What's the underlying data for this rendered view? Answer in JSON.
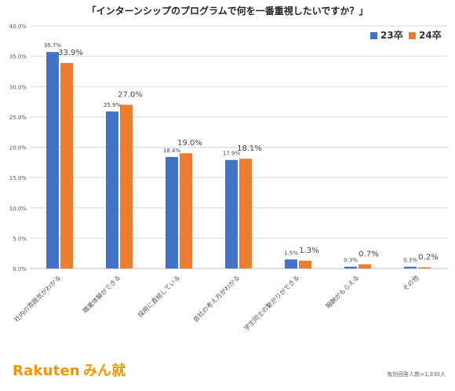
{
  "colors": {
    "series_23": "#4472C4",
    "series_24": "#ED7D31",
    "grid": "#d9d9d9",
    "axis_text": "#555555",
    "label_text": "#444444",
    "brand": "#F29500"
  },
  "footer": {
    "brand_main": "Rakuten",
    "brand_sub": "みん就",
    "sample_note": "有効回答人数=1,330人"
  },
  "chart_data": {
    "type": "bar",
    "title": "「インターンシップのプログラムで何を一番重視したいですか？」",
    "categories": [
      "社内の雰囲気がわかる",
      "職業体験ができる",
      "採用に直結している",
      "会社の考え方がわかる",
      "学生同士の繋がりができる",
      "報酬がもらえる",
      "その他"
    ],
    "series": [
      {
        "name": "23卒",
        "values": [
          35.7,
          25.9,
          18.4,
          17.9,
          1.5,
          0.3,
          0.3
        ],
        "labels": [
          "35.7%",
          "25.9%",
          "18.4%",
          "17.9%",
          "1.5%",
          "0.3%",
          "0.3%"
        ]
      },
      {
        "name": "24卒",
        "values": [
          33.9,
          27.0,
          19.0,
          18.1,
          1.3,
          0.7,
          0.2
        ],
        "labels": [
          "33.9%",
          "27.0%",
          "19.0%",
          "18.1%",
          "1.3%",
          "0.7%",
          "0.2%"
        ]
      }
    ],
    "ylim": [
      0,
      40
    ],
    "yticks": [
      0,
      5,
      10,
      15,
      20,
      25,
      30,
      35,
      40
    ],
    "ytick_labels": [
      "0.0%",
      "5.0%",
      "10.0%",
      "15.0%",
      "20.0%",
      "25.0%",
      "30.0%",
      "35.0%",
      "40.0%"
    ],
    "grid": true,
    "legend_position": "top-right"
  }
}
